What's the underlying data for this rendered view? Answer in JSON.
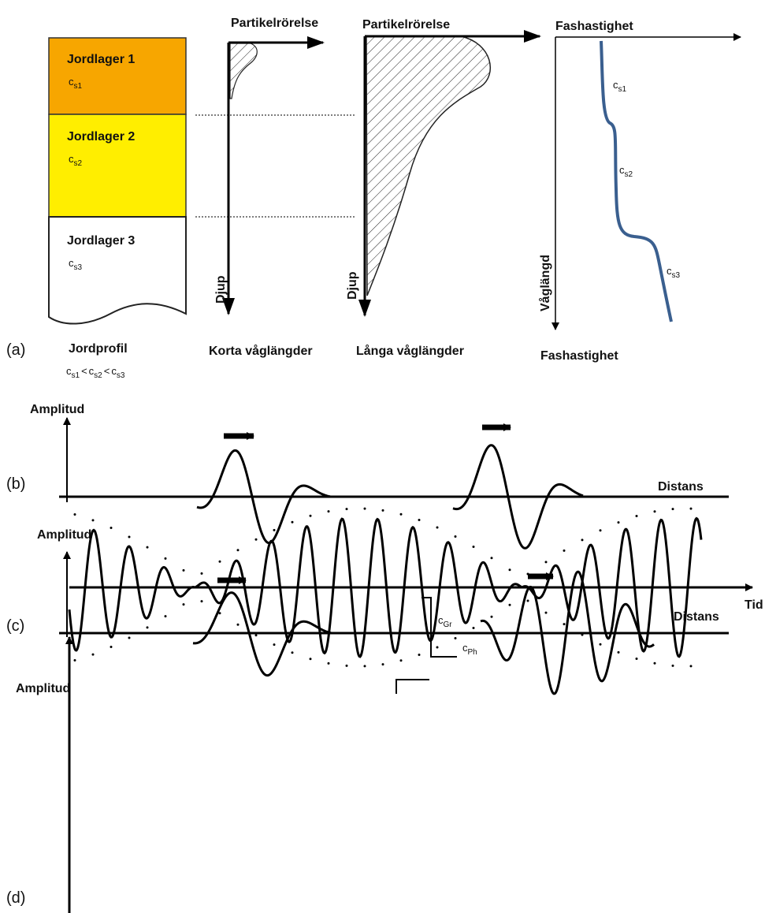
{
  "panel_a": {
    "label": "(a)",
    "layers": [
      {
        "name": "Jordlager 1",
        "symbol": "c",
        "sub": "s1"
      },
      {
        "name": "Jordlager 2",
        "symbol": "c",
        "sub": "s2"
      },
      {
        "name": "Jordlager 3",
        "symbol": "c",
        "sub": "s3"
      }
    ],
    "profile_caption": "Jordprofil",
    "relation": [
      {
        "symbol": "c",
        "sub": "s1"
      },
      {
        "symbol": "c",
        "sub": "s2"
      },
      {
        "symbol": "c",
        "sub": "s3"
      }
    ],
    "relation_operator": "<",
    "short_waves": {
      "axis_x": "Partikelrörelse",
      "axis_y": "Djup",
      "caption": "Korta våglängder"
    },
    "long_waves": {
      "axis_x": "Partikelrörelse",
      "axis_y": "Djup",
      "caption": "Långa våglängder"
    },
    "dispersion": {
      "axis_top": "Fashastighet",
      "axis_y": "Våglängd",
      "caption": "Fashastighet",
      "labels": [
        {
          "symbol": "c",
          "sub": "s1"
        },
        {
          "symbol": "c",
          "sub": "s2"
        },
        {
          "symbol": "c",
          "sub": "s3"
        }
      ]
    }
  },
  "panel_b": {
    "label": "(b)",
    "y_axis": "Amplitud",
    "x_axis": "Distans"
  },
  "panel_c": {
    "label": "(c)",
    "y_axis": "Amplitud",
    "x_axis": "Distans"
  },
  "panel_d": {
    "label": "(d)",
    "y_axis": "Amplitud",
    "x_axis": "Tid",
    "group_velocity": {
      "symbol": "c",
      "sub": "Gr"
    },
    "phase_velocity": {
      "symbol": "c",
      "sub": "Ph"
    }
  }
}
